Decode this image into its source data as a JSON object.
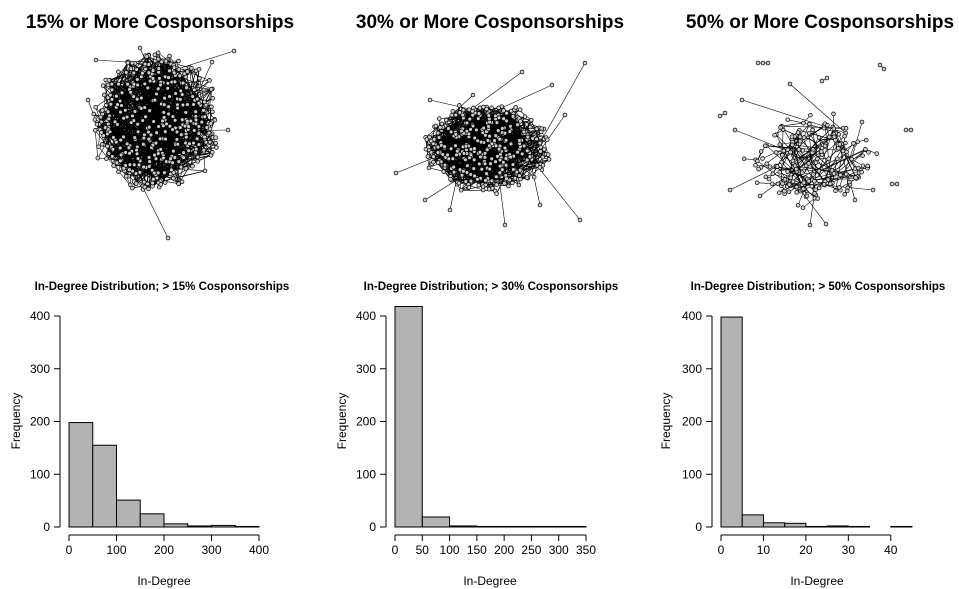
{
  "networks": [
    {
      "title": "15% or More Cosponsorships",
      "color": "#000000",
      "node_fill": "#c9c9c9"
    },
    {
      "title": "30% or More Cosponsorships",
      "color": "#000000",
      "node_fill": "#c9c9c9"
    },
    {
      "title": "50% or More Cosponsorships",
      "color": "#000000",
      "node_fill": "#c9c9c9"
    }
  ],
  "chart_data": [
    {
      "type": "bar",
      "title": "In-Degree Distribution; > 15% Cosponsorships",
      "xlabel": "In-Degree",
      "ylabel": "Frequency",
      "bin_edges": [
        0,
        50,
        100,
        150,
        200,
        250,
        300,
        350,
        400
      ],
      "values": [
        198,
        155,
        51,
        25,
        6,
        2,
        3,
        1
      ],
      "xlim": [
        0,
        400
      ],
      "ylim": [
        0,
        400
      ],
      "xticks": [
        0,
        100,
        200,
        300,
        400
      ],
      "yticks": [
        0,
        100,
        200,
        300,
        400
      ],
      "bar_color": "#b3b3b3"
    },
    {
      "type": "bar",
      "title": "In-Degree Distribution; > 30% Cosponsorships",
      "xlabel": "In-Degree",
      "ylabel": "Frequency",
      "bin_edges": [
        0,
        50,
        100,
        150,
        200,
        250,
        300,
        350
      ],
      "values": [
        418,
        19,
        2,
        1,
        1,
        1,
        1
      ],
      "xlim": [
        0,
        350
      ],
      "ylim": [
        0,
        400
      ],
      "xticks": [
        0,
        50,
        100,
        150,
        200,
        250,
        300,
        350
      ],
      "yticks": [
        0,
        100,
        200,
        300,
        400
      ],
      "bar_color": "#b3b3b3"
    },
    {
      "type": "bar",
      "title": "In-Degree Distribution; > 50% Cosponsorships",
      "xlabel": "In-Degree",
      "ylabel": "Frequency",
      "bin_edges": [
        0,
        5,
        10,
        15,
        20,
        25,
        30,
        35,
        40,
        45
      ],
      "values": [
        398,
        23,
        8,
        7,
        1,
        2,
        1,
        0,
        1
      ],
      "xlim": [
        0,
        45
      ],
      "ylim": [
        0,
        400
      ],
      "xticks": [
        0,
        10,
        20,
        30,
        40
      ],
      "yticks": [
        0,
        100,
        200,
        300,
        400
      ],
      "bar_color": "#b3b3b3"
    }
  ]
}
